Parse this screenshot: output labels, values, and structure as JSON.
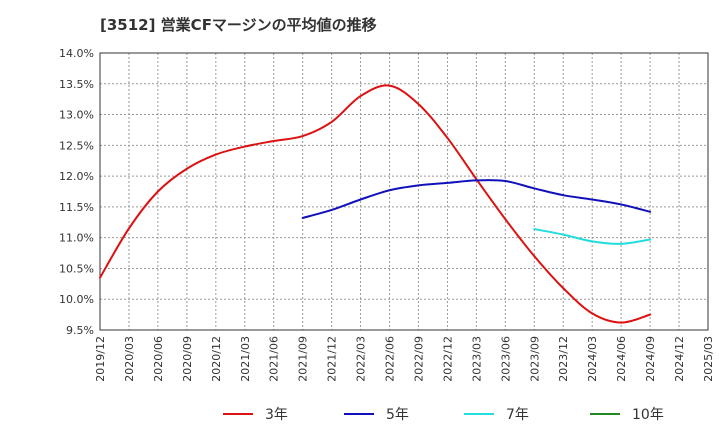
{
  "chart_data": {
    "type": "line",
    "title": "[3512]  営業CFマージンの平均値の推移",
    "xlabel": "",
    "ylabel": "",
    "ylim": [
      9.5,
      14.0
    ],
    "yticks": [
      9.5,
      10.0,
      10.5,
      11.0,
      11.5,
      12.0,
      12.5,
      13.0,
      13.5,
      14.0
    ],
    "ytick_labels": [
      "9.5%",
      "10.0%",
      "10.5%",
      "11.0%",
      "11.5%",
      "12.0%",
      "12.5%",
      "13.0%",
      "13.5%",
      "14.0%"
    ],
    "xticks": [
      "2019/12",
      "2020/03",
      "2020/06",
      "2020/09",
      "2020/12",
      "2021/03",
      "2021/06",
      "2021/09",
      "2021/12",
      "2022/03",
      "2022/06",
      "2022/09",
      "2022/12",
      "2023/03",
      "2023/06",
      "2023/09",
      "2023/12",
      "2024/03",
      "2024/06",
      "2024/09",
      "2024/12",
      "2025/03"
    ],
    "grid": true,
    "legend_position": "bottom",
    "series": [
      {
        "name": "3年",
        "color": "#dd1111",
        "x": [
          "2019/12",
          "2020/03",
          "2020/06",
          "2020/09",
          "2020/12",
          "2021/03",
          "2021/06",
          "2021/09",
          "2021/12",
          "2022/03",
          "2022/06",
          "2022/09",
          "2022/12",
          "2023/03",
          "2023/06",
          "2023/09",
          "2023/12",
          "2024/03",
          "2024/06",
          "2024/09"
        ],
        "values": [
          10.35,
          11.15,
          11.75,
          12.12,
          12.35,
          12.48,
          12.57,
          12.65,
          12.88,
          13.3,
          13.47,
          13.17,
          12.62,
          11.95,
          11.3,
          10.7,
          10.18,
          9.77,
          9.62,
          9.75
        ]
      },
      {
        "name": "5年",
        "color": "#1111bb",
        "x": [
          "2021/09",
          "2021/12",
          "2022/03",
          "2022/06",
          "2022/09",
          "2022/12",
          "2023/03",
          "2023/06",
          "2023/09",
          "2023/12",
          "2024/03",
          "2024/06",
          "2024/09"
        ],
        "values": [
          11.32,
          11.45,
          11.62,
          11.77,
          11.85,
          11.89,
          11.93,
          11.92,
          11.8,
          11.69,
          11.62,
          11.54,
          11.42
        ]
      },
      {
        "name": "7年",
        "color": "#22dddd",
        "x": [
          "2023/09",
          "2023/12",
          "2024/03",
          "2024/06",
          "2024/09"
        ],
        "values": [
          11.14,
          11.05,
          10.94,
          10.9,
          10.97
        ]
      },
      {
        "name": "10年",
        "color": "#228822",
        "x": [],
        "values": []
      }
    ]
  }
}
